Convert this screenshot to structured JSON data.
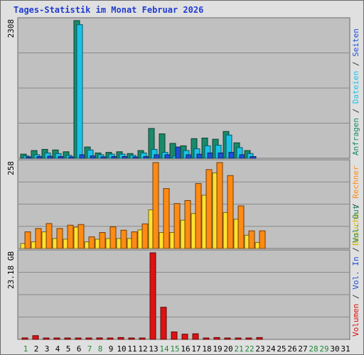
{
  "chart_data": {
    "type": "bar",
    "title": "Tages-Statistik im Monat Februar 2026",
    "categories": [
      "1",
      "2",
      "3",
      "4",
      "5",
      "6",
      "7",
      "8",
      "9",
      "10",
      "11",
      "12",
      "13",
      "14",
      "15",
      "16",
      "17",
      "18",
      "19",
      "20",
      "21",
      "22",
      "23",
      "24",
      "25",
      "26",
      "27",
      "28",
      "29",
      "30",
      "31"
    ],
    "weekend_days": [
      1,
      7,
      8,
      14,
      15,
      21,
      22,
      28,
      29
    ],
    "colors": {
      "anfragen": "#1a8a6a",
      "dateien": "#19c3e8",
      "seiten": "#1f4ed8",
      "besuche": "#ffe330",
      "rechner": "#ff8a14",
      "volumen": "#dd1212",
      "weekday_label": "#000000",
      "weekend_label": "#1f8a3a",
      "panel_bg": "#c0c0c0"
    },
    "panels": [
      {
        "id": "requests",
        "ymax_label": "2308",
        "ymax": 2308,
        "right_labels": [
          {
            "text": "Anfragen",
            "color": "#1a8a6a"
          },
          {
            "text": "Dateien",
            "color": "#19c3e8"
          },
          {
            "text": "Seiten",
            "color": "#1f4ed8"
          }
        ],
        "series": [
          {
            "name": "Anfragen",
            "color": "#1a8a6a",
            "values": [
              70,
              130,
              150,
              140,
              110,
              2308,
              190,
              90,
              100,
              110,
              80,
              130,
              500,
              410,
              250,
              210,
              330,
              340,
              320,
              450,
              260,
              130,
              0,
              0,
              0,
              0,
              0,
              0,
              0,
              0,
              0
            ]
          },
          {
            "name": "Dateien",
            "color": "#19c3e8",
            "values": [
              40,
              60,
              90,
              80,
              50,
              2240,
              140,
              60,
              70,
              70,
              50,
              90,
              150,
              100,
              40,
              130,
              160,
              210,
              220,
              390,
              180,
              80,
              0,
              0,
              0,
              0,
              0,
              0,
              0,
              0,
              0
            ]
          },
          {
            "name": "Seiten",
            "color": "#1f4ed8",
            "values": [
              20,
              30,
              35,
              30,
              25,
              60,
              40,
              25,
              30,
              30,
              20,
              30,
              60,
              60,
              190,
              60,
              70,
              90,
              90,
              100,
              60,
              30,
              0,
              0,
              0,
              0,
              0,
              0,
              0,
              0,
              0
            ]
          }
        ]
      },
      {
        "id": "visits",
        "ymax_label": "258",
        "ymax": 258,
        "right_labels": [
          {
            "text": "Besuche",
            "color": "#d8b800"
          },
          {
            "text": "Rechner",
            "color": "#ff8a14"
          }
        ],
        "series": [
          {
            "name": "Besuche",
            "color": "#ffe330",
            "values": [
              15,
              20,
              50,
              30,
              28,
              64,
              20,
              28,
              30,
              30,
              30,
              56,
              116,
              48,
              48,
              85,
              105,
              160,
              227,
              108,
              88,
              40,
              18,
              0,
              0,
              0,
              0,
              0,
              0,
              0,
              0
            ]
          },
          {
            "name": "Rechner",
            "color": "#ff8a14",
            "values": [
              50,
              60,
              75,
              60,
              70,
              72,
              35,
              48,
              65,
              55,
              50,
              74,
              258,
              180,
              135,
              144,
              195,
              237,
              258,
              219,
              128,
              53,
              53,
              0,
              0,
              0,
              0,
              0,
              0,
              0,
              0
            ]
          }
        ]
      },
      {
        "id": "volume",
        "ymax_label": "23.18 GB",
        "ymax": 23.18,
        "right_labels": [
          {
            "text": "Volumen",
            "color": "#dd1212"
          },
          {
            "text": "Vol. In",
            "color": "#1f4ed8"
          },
          {
            "text": "Vol. Out",
            "color": "#1a8a6a"
          }
        ],
        "series": [
          {
            "name": "Volumen",
            "color": "#dd1212",
            "values": [
              0.4,
              1.0,
              0.2,
              0.2,
              0.2,
              0.2,
              0.2,
              0.4,
              0.2,
              0.5,
              0.2,
              0.2,
              23.18,
              8.6,
              2.0,
              1.4,
              1.5,
              0.2,
              0.5,
              0.2,
              0.2,
              0.2,
              0.5,
              0,
              0,
              0,
              0,
              0,
              0,
              0,
              0
            ]
          }
        ]
      }
    ]
  }
}
